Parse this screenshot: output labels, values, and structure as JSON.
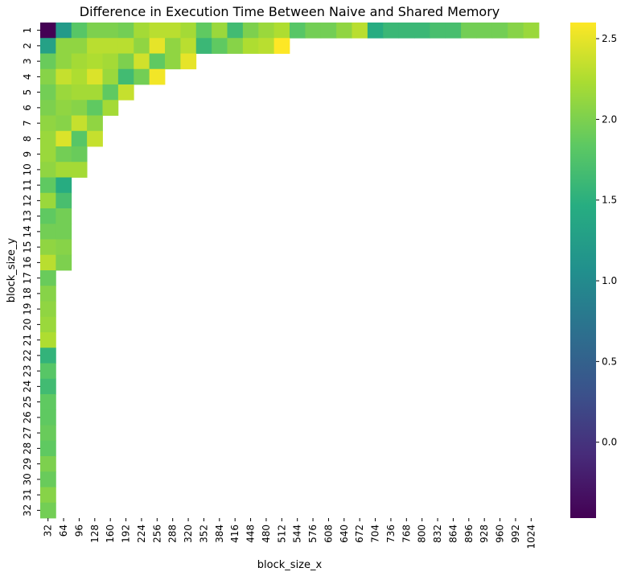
{
  "chart_data": {
    "type": "heatmap",
    "title": "Difference in Execution Time Between Naive and Shared Memory",
    "xlabel": "block_size_x",
    "ylabel": "block_size_y",
    "x_categories": [
      "32",
      "64",
      "96",
      "128",
      "160",
      "192",
      "224",
      "256",
      "288",
      "320",
      "352",
      "384",
      "416",
      "448",
      "480",
      "512",
      "544",
      "576",
      "608",
      "640",
      "672",
      "704",
      "736",
      "768",
      "800",
      "832",
      "864",
      "896",
      "928",
      "960",
      "992",
      "1024"
    ],
    "y_categories": [
      "1",
      "2",
      "3",
      "4",
      "5",
      "6",
      "7",
      "8",
      "9",
      "10",
      "11",
      "12",
      "13",
      "14",
      "15",
      "16",
      "17",
      "18",
      "19",
      "20",
      "21",
      "22",
      "23",
      "24",
      "25",
      "26",
      "27",
      "28",
      "29",
      "30",
      "31",
      "32"
    ],
    "values": [
      [
        -0.47,
        1.2,
        1.8,
        2.0,
        2.0,
        1.95,
        2.2,
        2.3,
        2.3,
        2.2,
        1.85,
        2.15,
        1.65,
        2.0,
        2.15,
        2.25,
        1.8,
        1.95,
        1.95,
        2.1,
        2.3,
        1.45,
        1.6,
        1.6,
        1.6,
        1.7,
        1.7,
        1.95,
        1.95,
        1.95,
        2.05,
        2.15
      ],
      [
        1.3,
        2.1,
        2.1,
        2.3,
        2.3,
        2.3,
        2.1,
        2.5,
        2.1,
        2.3,
        1.6,
        1.85,
        2.05,
        2.25,
        2.3,
        2.6,
        null,
        null,
        null,
        null,
        null,
        null,
        null,
        null,
        null,
        null,
        null,
        null,
        null,
        null,
        null,
        null
      ],
      [
        1.9,
        2.1,
        2.2,
        2.25,
        2.2,
        2.0,
        2.4,
        1.85,
        2.1,
        2.5,
        null,
        null,
        null,
        null,
        null,
        null,
        null,
        null,
        null,
        null,
        null,
        null,
        null,
        null,
        null,
        null,
        null,
        null,
        null,
        null,
        null,
        null
      ],
      [
        2.05,
        2.35,
        2.25,
        2.45,
        2.15,
        1.65,
        1.95,
        2.55,
        null,
        null,
        null,
        null,
        null,
        null,
        null,
        null,
        null,
        null,
        null,
        null,
        null,
        null,
        null,
        null,
        null,
        null,
        null,
        null,
        null,
        null,
        null,
        null
      ],
      [
        1.95,
        2.15,
        2.2,
        2.2,
        1.85,
        2.35,
        null,
        null,
        null,
        null,
        null,
        null,
        null,
        null,
        null,
        null,
        null,
        null,
        null,
        null,
        null,
        null,
        null,
        null,
        null,
        null,
        null,
        null,
        null,
        null,
        null,
        null
      ],
      [
        2.0,
        2.1,
        2.05,
        1.85,
        2.2,
        null,
        null,
        null,
        null,
        null,
        null,
        null,
        null,
        null,
        null,
        null,
        null,
        null,
        null,
        null,
        null,
        null,
        null,
        null,
        null,
        null,
        null,
        null,
        null,
        null,
        null,
        null
      ],
      [
        2.1,
        2.05,
        2.35,
        2.1,
        null,
        null,
        null,
        null,
        null,
        null,
        null,
        null,
        null,
        null,
        null,
        null,
        null,
        null,
        null,
        null,
        null,
        null,
        null,
        null,
        null,
        null,
        null,
        null,
        null,
        null,
        null,
        null
      ],
      [
        2.15,
        2.45,
        1.8,
        2.35,
        null,
        null,
        null,
        null,
        null,
        null,
        null,
        null,
        null,
        null,
        null,
        null,
        null,
        null,
        null,
        null,
        null,
        null,
        null,
        null,
        null,
        null,
        null,
        null,
        null,
        null,
        null,
        null
      ],
      [
        2.15,
        1.95,
        1.9,
        null,
        null,
        null,
        null,
        null,
        null,
        null,
        null,
        null,
        null,
        null,
        null,
        null,
        null,
        null,
        null,
        null,
        null,
        null,
        null,
        null,
        null,
        null,
        null,
        null,
        null,
        null,
        null,
        null
      ],
      [
        2.1,
        2.2,
        2.2,
        null,
        null,
        null,
        null,
        null,
        null,
        null,
        null,
        null,
        null,
        null,
        null,
        null,
        null,
        null,
        null,
        null,
        null,
        null,
        null,
        null,
        null,
        null,
        null,
        null,
        null,
        null,
        null,
        null
      ],
      [
        1.85,
        1.45,
        null,
        null,
        null,
        null,
        null,
        null,
        null,
        null,
        null,
        null,
        null,
        null,
        null,
        null,
        null,
        null,
        null,
        null,
        null,
        null,
        null,
        null,
        null,
        null,
        null,
        null,
        null,
        null,
        null,
        null
      ],
      [
        2.15,
        1.7,
        null,
        null,
        null,
        null,
        null,
        null,
        null,
        null,
        null,
        null,
        null,
        null,
        null,
        null,
        null,
        null,
        null,
        null,
        null,
        null,
        null,
        null,
        null,
        null,
        null,
        null,
        null,
        null,
        null,
        null
      ],
      [
        1.85,
        1.95,
        null,
        null,
        null,
        null,
        null,
        null,
        null,
        null,
        null,
        null,
        null,
        null,
        null,
        null,
        null,
        null,
        null,
        null,
        null,
        null,
        null,
        null,
        null,
        null,
        null,
        null,
        null,
        null,
        null,
        null
      ],
      [
        1.95,
        1.95,
        null,
        null,
        null,
        null,
        null,
        null,
        null,
        null,
        null,
        null,
        null,
        null,
        null,
        null,
        null,
        null,
        null,
        null,
        null,
        null,
        null,
        null,
        null,
        null,
        null,
        null,
        null,
        null,
        null,
        null
      ],
      [
        2.1,
        2.05,
        null,
        null,
        null,
        null,
        null,
        null,
        null,
        null,
        null,
        null,
        null,
        null,
        null,
        null,
        null,
        null,
        null,
        null,
        null,
        null,
        null,
        null,
        null,
        null,
        null,
        null,
        null,
        null,
        null,
        null
      ],
      [
        2.3,
        2.0,
        null,
        null,
        null,
        null,
        null,
        null,
        null,
        null,
        null,
        null,
        null,
        null,
        null,
        null,
        null,
        null,
        null,
        null,
        null,
        null,
        null,
        null,
        null,
        null,
        null,
        null,
        null,
        null,
        null,
        null
      ],
      [
        1.9,
        null,
        null,
        null,
        null,
        null,
        null,
        null,
        null,
        null,
        null,
        null,
        null,
        null,
        null,
        null,
        null,
        null,
        null,
        null,
        null,
        null,
        null,
        null,
        null,
        null,
        null,
        null,
        null,
        null,
        null,
        null
      ],
      [
        2.05,
        null,
        null,
        null,
        null,
        null,
        null,
        null,
        null,
        null,
        null,
        null,
        null,
        null,
        null,
        null,
        null,
        null,
        null,
        null,
        null,
        null,
        null,
        null,
        null,
        null,
        null,
        null,
        null,
        null,
        null,
        null
      ],
      [
        2.1,
        null,
        null,
        null,
        null,
        null,
        null,
        null,
        null,
        null,
        null,
        null,
        null,
        null,
        null,
        null,
        null,
        null,
        null,
        null,
        null,
        null,
        null,
        null,
        null,
        null,
        null,
        null,
        null,
        null,
        null,
        null
      ],
      [
        2.15,
        null,
        null,
        null,
        null,
        null,
        null,
        null,
        null,
        null,
        null,
        null,
        null,
        null,
        null,
        null,
        null,
        null,
        null,
        null,
        null,
        null,
        null,
        null,
        null,
        null,
        null,
        null,
        null,
        null,
        null,
        null
      ],
      [
        2.25,
        null,
        null,
        null,
        null,
        null,
        null,
        null,
        null,
        null,
        null,
        null,
        null,
        null,
        null,
        null,
        null,
        null,
        null,
        null,
        null,
        null,
        null,
        null,
        null,
        null,
        null,
        null,
        null,
        null,
        null,
        null
      ],
      [
        1.55,
        null,
        null,
        null,
        null,
        null,
        null,
        null,
        null,
        null,
        null,
        null,
        null,
        null,
        null,
        null,
        null,
        null,
        null,
        null,
        null,
        null,
        null,
        null,
        null,
        null,
        null,
        null,
        null,
        null,
        null,
        null
      ],
      [
        1.8,
        null,
        null,
        null,
        null,
        null,
        null,
        null,
        null,
        null,
        null,
        null,
        null,
        null,
        null,
        null,
        null,
        null,
        null,
        null,
        null,
        null,
        null,
        null,
        null,
        null,
        null,
        null,
        null,
        null,
        null,
        null
      ],
      [
        1.65,
        null,
        null,
        null,
        null,
        null,
        null,
        null,
        null,
        null,
        null,
        null,
        null,
        null,
        null,
        null,
        null,
        null,
        null,
        null,
        null,
        null,
        null,
        null,
        null,
        null,
        null,
        null,
        null,
        null,
        null,
        null
      ],
      [
        1.85,
        null,
        null,
        null,
        null,
        null,
        null,
        null,
        null,
        null,
        null,
        null,
        null,
        null,
        null,
        null,
        null,
        null,
        null,
        null,
        null,
        null,
        null,
        null,
        null,
        null,
        null,
        null,
        null,
        null,
        null,
        null
      ],
      [
        1.85,
        null,
        null,
        null,
        null,
        null,
        null,
        null,
        null,
        null,
        null,
        null,
        null,
        null,
        null,
        null,
        null,
        null,
        null,
        null,
        null,
        null,
        null,
        null,
        null,
        null,
        null,
        null,
        null,
        null,
        null,
        null
      ],
      [
        1.9,
        null,
        null,
        null,
        null,
        null,
        null,
        null,
        null,
        null,
        null,
        null,
        null,
        null,
        null,
        null,
        null,
        null,
        null,
        null,
        null,
        null,
        null,
        null,
        null,
        null,
        null,
        null,
        null,
        null,
        null,
        null
      ],
      [
        1.85,
        null,
        null,
        null,
        null,
        null,
        null,
        null,
        null,
        null,
        null,
        null,
        null,
        null,
        null,
        null,
        null,
        null,
        null,
        null,
        null,
        null,
        null,
        null,
        null,
        null,
        null,
        null,
        null,
        null,
        null,
        null
      ],
      [
        2.0,
        null,
        null,
        null,
        null,
        null,
        null,
        null,
        null,
        null,
        null,
        null,
        null,
        null,
        null,
        null,
        null,
        null,
        null,
        null,
        null,
        null,
        null,
        null,
        null,
        null,
        null,
        null,
        null,
        null,
        null,
        null
      ],
      [
        1.9,
        null,
        null,
        null,
        null,
        null,
        null,
        null,
        null,
        null,
        null,
        null,
        null,
        null,
        null,
        null,
        null,
        null,
        null,
        null,
        null,
        null,
        null,
        null,
        null,
        null,
        null,
        null,
        null,
        null,
        null,
        null
      ],
      [
        2.05,
        null,
        null,
        null,
        null,
        null,
        null,
        null,
        null,
        null,
        null,
        null,
        null,
        null,
        null,
        null,
        null,
        null,
        null,
        null,
        null,
        null,
        null,
        null,
        null,
        null,
        null,
        null,
        null,
        null,
        null,
        null
      ],
      [
        1.95,
        null,
        null,
        null,
        null,
        null,
        null,
        null,
        null,
        null,
        null,
        null,
        null,
        null,
        null,
        null,
        null,
        null,
        null,
        null,
        null,
        null,
        null,
        null,
        null,
        null,
        null,
        null,
        null,
        null,
        null,
        null
      ]
    ],
    "colorbar": {
      "colormap": "viridis",
      "vmin": -0.47,
      "vmax": 2.6,
      "ticks": [
        0.0,
        0.5,
        1.0,
        1.5,
        2.0,
        2.5
      ],
      "tick_labels": [
        "0.0",
        "0.5",
        "1.0",
        "1.5",
        "2.0",
        "2.5"
      ]
    },
    "grid": false,
    "missing_cells": "blank (upper-triangular product limit)"
  }
}
